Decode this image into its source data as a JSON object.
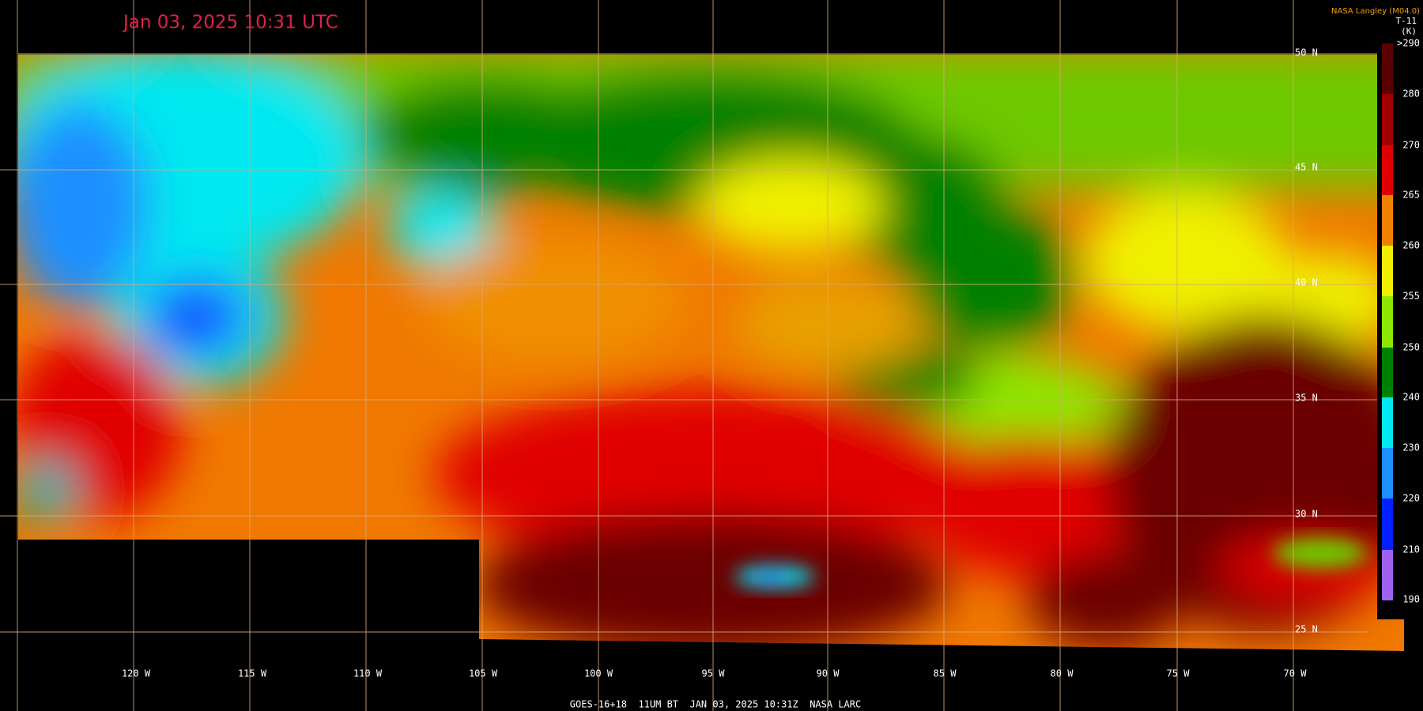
{
  "header": {
    "title": "Jan 03, 2025 10:31 UTC",
    "source": "NASA Langley (M04.0)"
  },
  "colorbar": {
    "title": "T-11",
    "unit": "(K)",
    "labels": [
      ">290",
      280,
      270,
      265,
      260,
      255,
      250,
      240,
      230,
      220,
      210,
      190
    ]
  },
  "latitude_labels": [
    "50 N",
    "45 N",
    "40 N",
    "35 N",
    "30 N",
    "25 N"
  ],
  "longitude_labels": [
    "120 W",
    "115 W",
    "110 W",
    "105 W",
    "100 W",
    "95 W",
    "90 W",
    "85 W",
    "80 W",
    "75 W",
    "70 W"
  ],
  "footer": "GOES-16+18  11UM BT  JAN 03, 2025 10:31Z  NASA LARC"
}
